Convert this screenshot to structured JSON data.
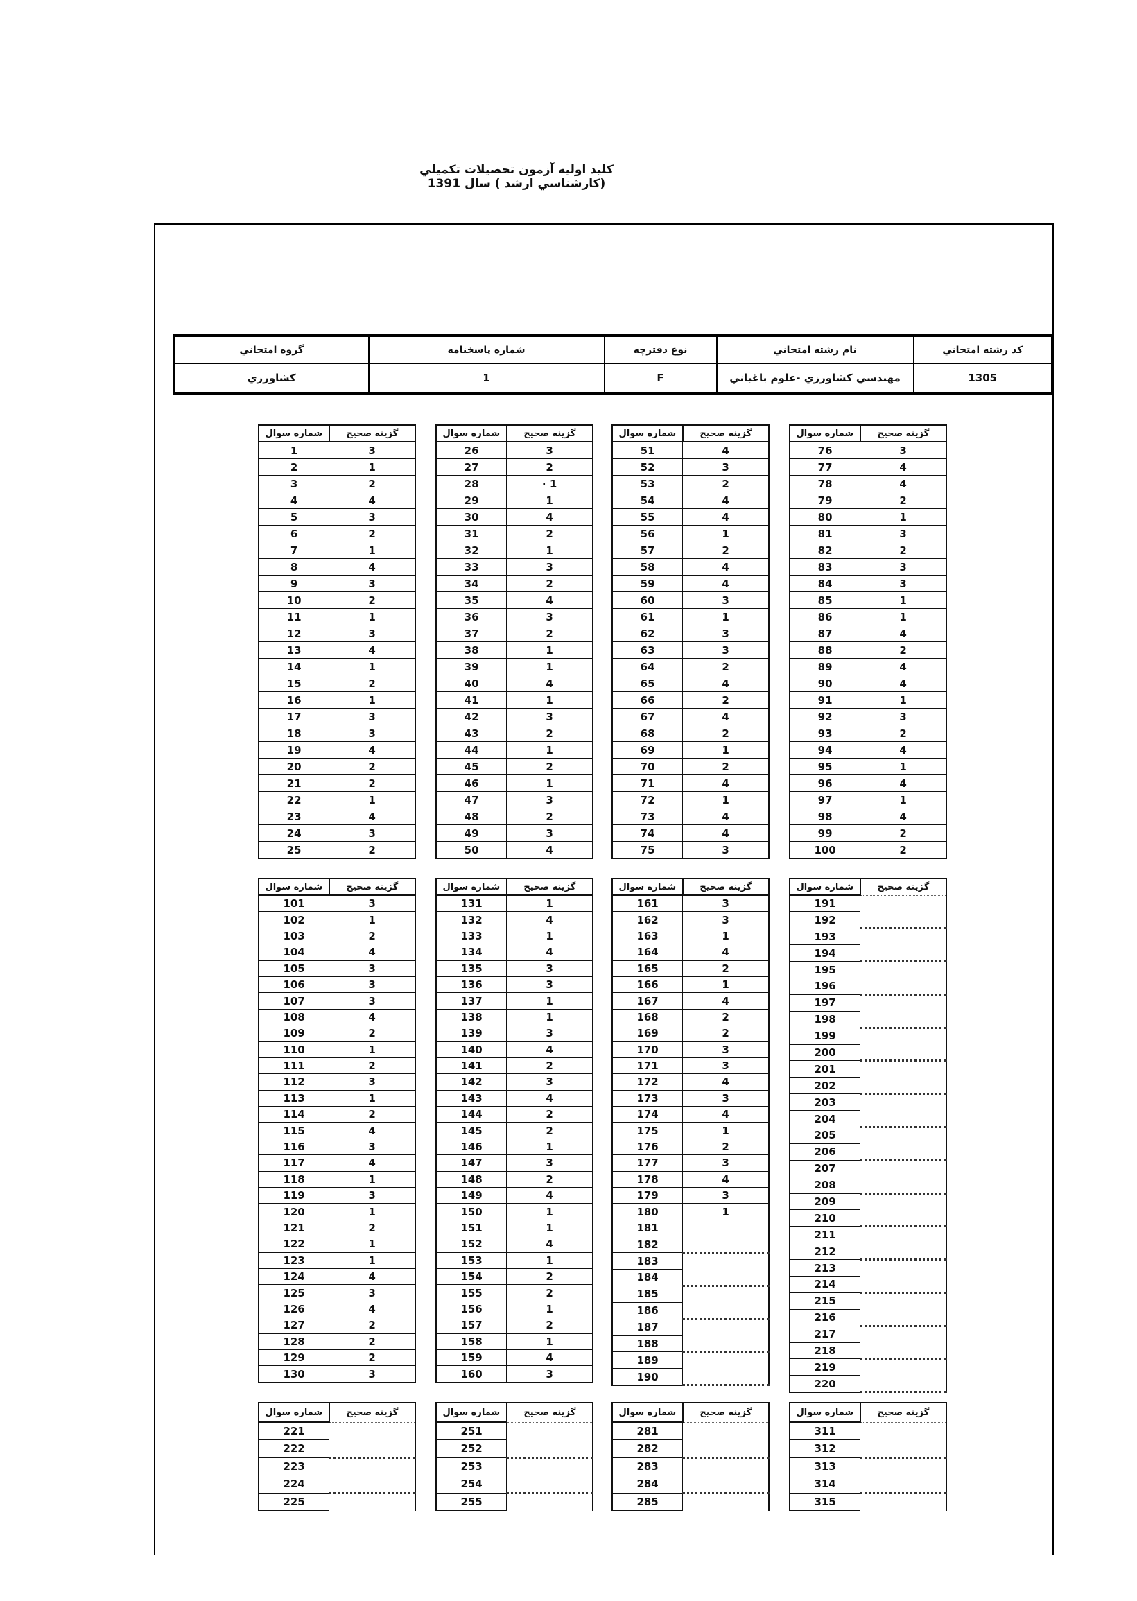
{
  "page_title": "کلید اولیه آزمون تحصیلات تکمیلي (کارشناسي ارشد ) سال 1391",
  "info_table": {
    "columns": [
      {
        "label": "گروه امتحاني",
        "value": "کشاورزي"
      },
      {
        "label": "شماره پاسخنامه",
        "value": "1"
      },
      {
        "label": "نوع دفترچه",
        "value": "F"
      },
      {
        "label": "نام رشته امتحاني",
        "value": "مهندسي کشاورزي -علوم باغباني"
      },
      {
        "label": "کد رشته امتحاني",
        "value": "1305"
      }
    ]
  },
  "column_headers": {
    "question": "شماره سوال",
    "answer": "گزينه صحيح"
  },
  "blocks": [
    {
      "tables": [
        {
          "questions": [
            1,
            2,
            3,
            4,
            5,
            6,
            7,
            8,
            9,
            10,
            11,
            12,
            13,
            14,
            15,
            16,
            17,
            18,
            19,
            20,
            21,
            22,
            23,
            24,
            25
          ],
          "answers": [
            "3",
            "1",
            "2",
            "4",
            "3",
            "2",
            "1",
            "4",
            "3",
            "2",
            "1",
            "3",
            "4",
            "1",
            "2",
            "1",
            "3",
            "3",
            "4",
            "2",
            "2",
            "1",
            "4",
            "3",
            "2"
          ]
        },
        {
          "questions": [
            26,
            27,
            28,
            29,
            30,
            31,
            32,
            33,
            34,
            35,
            36,
            37,
            38,
            39,
            40,
            41,
            42,
            43,
            44,
            45,
            46,
            47,
            48,
            49,
            50
          ],
          "answers": [
            "3",
            "2",
            "· 1",
            "1",
            "4",
            "2",
            "1",
            "3",
            "2",
            "4",
            "3",
            "2",
            "1",
            "1",
            "4",
            "1",
            "3",
            "2",
            "1",
            "2",
            "1",
            "3",
            "2",
            "3",
            "4"
          ]
        },
        {
          "questions": [
            51,
            52,
            53,
            54,
            55,
            56,
            57,
            58,
            59,
            60,
            61,
            62,
            63,
            64,
            65,
            66,
            67,
            68,
            69,
            70,
            71,
            72,
            73,
            74,
            75
          ],
          "answers": [
            "4",
            "3",
            "2",
            "4",
            "4",
            "1",
            "2",
            "4",
            "4",
            "3",
            "1",
            "3",
            "3",
            "2",
            "4",
            "2",
            "4",
            "2",
            "1",
            "2",
            "4",
            "1",
            "4",
            "4",
            "3"
          ]
        },
        {
          "questions": [
            76,
            77,
            78,
            79,
            80,
            81,
            82,
            83,
            84,
            85,
            86,
            87,
            88,
            89,
            90,
            91,
            92,
            93,
            94,
            95,
            96,
            97,
            98,
            99,
            100
          ],
          "answers": [
            "3",
            "4",
            "4",
            "2",
            "1",
            "3",
            "2",
            "3",
            "3",
            "1",
            "1",
            "4",
            "2",
            "4",
            "4",
            "1",
            "3",
            "2",
            "4",
            "1",
            "4",
            "1",
            "4",
            "2",
            "2"
          ]
        }
      ]
    },
    {
      "tables": [
        {
          "questions": [
            101,
            102,
            103,
            104,
            105,
            106,
            107,
            108,
            109,
            110,
            111,
            112,
            113,
            114,
            115,
            116,
            117,
            118,
            119,
            120,
            121,
            122,
            123,
            124,
            125,
            126,
            127,
            128,
            129,
            130
          ],
          "answers": [
            "3",
            "1",
            "2",
            "4",
            "3",
            "3",
            "3",
            "4",
            "2",
            "1",
            "2",
            "3",
            "1",
            "2",
            "4",
            "3",
            "4",
            "1",
            "3",
            "1",
            "2",
            "1",
            "1",
            "4",
            "3",
            "4",
            "2",
            "2",
            "2",
            "3"
          ]
        },
        {
          "questions": [
            131,
            132,
            133,
            134,
            135,
            136,
            137,
            138,
            139,
            140,
            141,
            142,
            143,
            144,
            145,
            146,
            147,
            148,
            149,
            150,
            151,
            152,
            153,
            154,
            155,
            156,
            157,
            158,
            159,
            160
          ],
          "answers": [
            "1",
            "4",
            "1",
            "4",
            "3",
            "3",
            "1",
            "1",
            "3",
            "4",
            "2",
            "3",
            "4",
            "2",
            "2",
            "1",
            "3",
            "2",
            "4",
            "1",
            "1",
            "4",
            "1",
            "2",
            "2",
            "1",
            "2",
            "1",
            "4",
            "3"
          ]
        },
        {
          "questions": [
            161,
            162,
            163,
            164,
            165,
            166,
            167,
            168,
            169,
            170,
            171,
            172,
            173,
            174,
            175,
            176,
            177,
            178,
            179,
            180,
            181,
            182,
            183,
            184,
            185,
            186,
            187,
            188,
            189,
            190
          ],
          "answers": [
            "3",
            "3",
            "1",
            "4",
            "2",
            "1",
            "4",
            "2",
            "2",
            "3",
            "3",
            "4",
            "3",
            "4",
            "1",
            "2",
            "3",
            "4",
            "3",
            "1",
            null,
            null,
            null,
            null,
            null,
            null,
            null,
            null,
            null,
            null
          ]
        },
        {
          "questions": [
            191,
            192,
            193,
            194,
            195,
            196,
            197,
            198,
            199,
            200,
            201,
            202,
            203,
            204,
            205,
            206,
            207,
            208,
            209,
            210,
            211,
            212,
            213,
            214,
            215,
            216,
            217,
            218,
            219,
            220
          ],
          "answers": [
            null,
            null,
            null,
            null,
            null,
            null,
            null,
            null,
            null,
            null,
            null,
            null,
            null,
            null,
            null,
            null,
            null,
            null,
            null,
            null,
            null,
            null,
            null,
            null,
            null,
            null,
            null,
            null,
            null,
            null
          ],
          "open": true
        }
      ]
    },
    {
      "tables": [
        {
          "questions": [
            221,
            222,
            223,
            224,
            225
          ],
          "answers": [
            null,
            null,
            null,
            null,
            null
          ],
          "open": true
        },
        {
          "questions": [
            251,
            252,
            253,
            254,
            255
          ],
          "answers": [
            null,
            null,
            null,
            null,
            null
          ],
          "open": true
        },
        {
          "questions": [
            281,
            282,
            283,
            284,
            285
          ],
          "answers": [
            null,
            null,
            null,
            null,
            null
          ],
          "open": true
        },
        {
          "questions": [
            311,
            312,
            313,
            314,
            315
          ],
          "answers": [
            null,
            null,
            null,
            null,
            null
          ],
          "open": true
        }
      ]
    }
  ]
}
